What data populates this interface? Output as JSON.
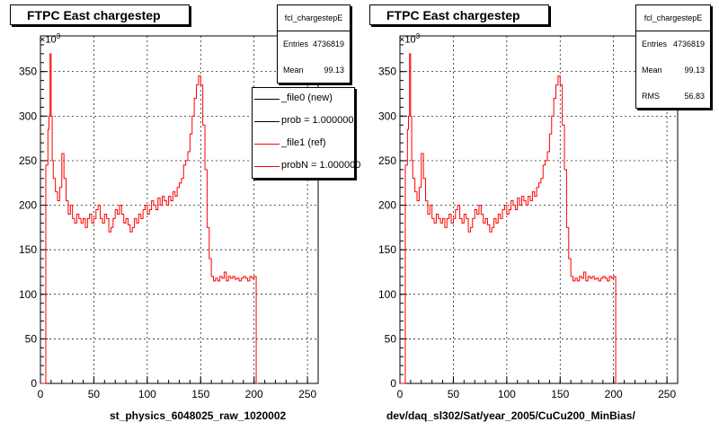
{
  "chart_data": [
    {
      "type": "line",
      "title": "FTPC East chargestep",
      "xlabel": "st_physics_6048025_raw_1020002",
      "ylabel": "",
      "y_exponent": "×10",
      "y_exponent_power": "3",
      "xlim": [
        0,
        260
      ],
      "ylim": [
        0,
        390
      ],
      "x_ticks": [
        "0",
        "50",
        "100",
        "150",
        "200",
        "250"
      ],
      "y_ticks": [
        "0",
        "50",
        "100",
        "150",
        "200",
        "250",
        "300",
        "350"
      ],
      "grid": true,
      "stats": {
        "name": "fcl_chargestepE",
        "rows": [
          {
            "label": "Entries",
            "value": "4736819"
          },
          {
            "label": "Mean",
            "value": "99.13"
          }
        ]
      },
      "legend": {
        "placement": "top-right",
        "entries": [
          {
            "label": "_file0 (new)",
            "color": "#000000"
          },
          {
            "label": "prob = 1.000000",
            "color": "#000000"
          },
          {
            "label": "_file1 (ref)",
            "color": "#ff0000"
          },
          {
            "label": "probN = 1.000000",
            "color": "#ff0000"
          }
        ]
      },
      "series": [
        {
          "color": "#ff0000",
          "x": [
            0,
            5,
            7,
            8,
            9,
            10,
            11,
            12,
            14,
            16,
            18,
            20,
            22,
            24,
            26,
            28,
            30,
            32,
            34,
            36,
            38,
            40,
            42,
            44,
            46,
            48,
            50,
            52,
            54,
            56,
            58,
            60,
            62,
            64,
            66,
            68,
            70,
            72,
            74,
            76,
            78,
            80,
            82,
            84,
            86,
            88,
            90,
            92,
            94,
            96,
            98,
            100,
            102,
            104,
            106,
            108,
            110,
            112,
            114,
            116,
            118,
            120,
            122,
            124,
            126,
            128,
            130,
            132,
            134,
            136,
            138,
            140,
            142,
            144,
            146,
            148,
            150,
            152,
            154,
            156,
            158,
            160,
            162,
            164,
            166,
            168,
            170,
            172,
            174,
            176,
            178,
            180,
            182,
            184,
            186,
            188,
            190,
            192,
            194,
            196,
            198,
            200,
            202,
            204
          ],
          "values": [
            0,
            245,
            285,
            300,
            370,
            300,
            250,
            230,
            215,
            205,
            220,
            258,
            230,
            205,
            190,
            200,
            185,
            180,
            190,
            185,
            180,
            185,
            175,
            185,
            190,
            180,
            185,
            195,
            200,
            185,
            180,
            190,
            185,
            170,
            175,
            185,
            195,
            190,
            200,
            190,
            180,
            185,
            178,
            170,
            175,
            185,
            180,
            190,
            185,
            195,
            200,
            190,
            195,
            205,
            200,
            195,
            208,
            200,
            210,
            205,
            200,
            210,
            205,
            215,
            210,
            220,
            225,
            230,
            245,
            250,
            260,
            280,
            300,
            320,
            335,
            345,
            335,
            290,
            240,
            175,
            140,
            120,
            115,
            118,
            115,
            120,
            118,
            125,
            115,
            120,
            118,
            120,
            117,
            118,
            115,
            118,
            120,
            118,
            115,
            120,
            118,
            120,
            0,
            0
          ]
        }
      ]
    },
    {
      "type": "line",
      "title": "FTPC East chargestep",
      "xlabel": "dev/daq_sl302/Sat/year_2005/CuCu200_MinBias/",
      "ylabel": "",
      "y_exponent": "×10",
      "y_exponent_power": "3",
      "xlim": [
        0,
        260
      ],
      "ylim": [
        0,
        390
      ],
      "x_ticks": [
        "0",
        "50",
        "100",
        "150",
        "200",
        "250"
      ],
      "y_ticks": [
        "0",
        "50",
        "100",
        "150",
        "200",
        "250",
        "300",
        "350"
      ],
      "grid": true,
      "stats": {
        "name": "fcl_chargestepE",
        "rows": [
          {
            "label": "Entries",
            "value": "4736819"
          },
          {
            "label": "Mean",
            "value": "99.13"
          },
          {
            "label": "RMS",
            "value": "56.83"
          }
        ]
      },
      "series": [
        {
          "color": "#ff0000",
          "x": [
            0,
            5,
            7,
            8,
            9,
            10,
            11,
            12,
            14,
            16,
            18,
            20,
            22,
            24,
            26,
            28,
            30,
            32,
            34,
            36,
            38,
            40,
            42,
            44,
            46,
            48,
            50,
            52,
            54,
            56,
            58,
            60,
            62,
            64,
            66,
            68,
            70,
            72,
            74,
            76,
            78,
            80,
            82,
            84,
            86,
            88,
            90,
            92,
            94,
            96,
            98,
            100,
            102,
            104,
            106,
            108,
            110,
            112,
            114,
            116,
            118,
            120,
            122,
            124,
            126,
            128,
            130,
            132,
            134,
            136,
            138,
            140,
            142,
            144,
            146,
            148,
            150,
            152,
            154,
            156,
            158,
            160,
            162,
            164,
            166,
            168,
            170,
            172,
            174,
            176,
            178,
            180,
            182,
            184,
            186,
            188,
            190,
            192,
            194,
            196,
            198,
            200,
            202,
            204
          ],
          "values": [
            0,
            245,
            285,
            300,
            370,
            300,
            250,
            230,
            215,
            205,
            220,
            258,
            230,
            205,
            190,
            200,
            185,
            180,
            190,
            185,
            180,
            185,
            175,
            185,
            190,
            180,
            185,
            195,
            200,
            185,
            180,
            190,
            185,
            170,
            175,
            185,
            195,
            190,
            200,
            190,
            180,
            185,
            178,
            170,
            175,
            185,
            180,
            190,
            185,
            195,
            200,
            190,
            195,
            205,
            200,
            195,
            208,
            200,
            210,
            205,
            200,
            210,
            205,
            215,
            210,
            220,
            225,
            230,
            245,
            250,
            260,
            280,
            300,
            320,
            335,
            345,
            335,
            290,
            240,
            175,
            140,
            120,
            115,
            118,
            115,
            120,
            118,
            125,
            115,
            120,
            118,
            120,
            117,
            118,
            115,
            118,
            120,
            118,
            115,
            120,
            118,
            120,
            0,
            0
          ]
        }
      ]
    }
  ]
}
